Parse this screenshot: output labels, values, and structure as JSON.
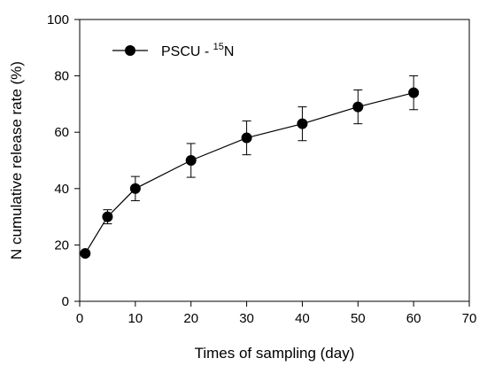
{
  "chart_data": {
    "type": "line",
    "xlabel": "Times of sampling (day)",
    "ylabel": "N cumulative release rate (%)",
    "xlim": [
      0,
      70
    ],
    "ylim": [
      0,
      100
    ],
    "xticks": [
      0,
      10,
      20,
      30,
      40,
      50,
      60,
      70
    ],
    "yticks": [
      0,
      20,
      40,
      60,
      80,
      100
    ],
    "grid": false,
    "legend_position": "top-left",
    "series": [
      {
        "name": "PSCU - 15N",
        "name_parts": {
          "prefix": "PSCU - ",
          "superscript": "15",
          "suffix": "N"
        },
        "marker": "filled-circle",
        "color": "#000000",
        "x": [
          1,
          5,
          10,
          20,
          30,
          40,
          50,
          60
        ],
        "y": [
          17,
          30,
          40,
          50,
          58,
          63,
          69,
          74
        ],
        "error": [
          0,
          2.5,
          4.3,
          6,
          6,
          6,
          6,
          6
        ]
      }
    ]
  }
}
